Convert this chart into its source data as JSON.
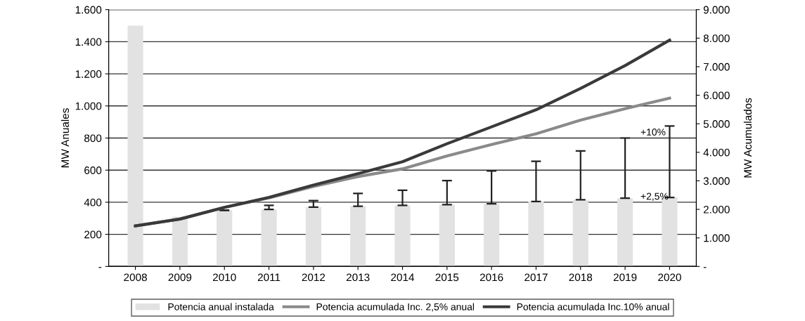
{
  "chart_data": {
    "type": "bar",
    "categories": [
      "2008",
      "2009",
      "2010",
      "2011",
      "2012",
      "2013",
      "2014",
      "2015",
      "2016",
      "2017",
      "2018",
      "2019",
      "2020"
    ],
    "ylabel": "MW Anuales",
    "y2label": "MW Acumulados",
    "ylim": [
      0,
      1600
    ],
    "yticks": [
      {
        "value": 0,
        "label": "-"
      },
      200,
      400,
      600,
      800,
      {
        "value": 1000,
        "label": "1.000"
      },
      {
        "value": 1200,
        "label": "1.200"
      },
      {
        "value": 1400,
        "label": "1.400"
      },
      {
        "value": 1600,
        "label": "1.600"
      }
    ],
    "y2lim": [
      0,
      9000
    ],
    "y2ticks": [
      {
        "value": 0,
        "label": "-"
      },
      {
        "value": 1000,
        "label": "1.000"
      },
      {
        "value": 2000,
        "label": "2.000"
      },
      {
        "value": 3000,
        "label": "3.000"
      },
      {
        "value": 4000,
        "label": "4.000"
      },
      {
        "value": 5000,
        "label": "5.000"
      },
      {
        "value": 6000,
        "label": "6.000"
      },
      {
        "value": 7000,
        "label": "7.000"
      },
      {
        "value": 8000,
        "label": "8.000"
      },
      {
        "value": 9000,
        "label": "9.000"
      }
    ],
    "grid": "y",
    "legend": "bottom",
    "series": [
      {
        "name": "Potencia anual instalada",
        "color": "#e2e2e2",
        "values": [
          1500,
          310,
          350,
          355,
          370,
          375,
          380,
          385,
          390,
          405,
          415,
          425,
          430
        ],
        "errors": [
          null,
          null,
          [
            350,
            350
          ],
          [
            355,
            380
          ],
          [
            370,
            410
          ],
          [
            375,
            455
          ],
          [
            380,
            475
          ],
          [
            385,
            535
          ],
          [
            390,
            595
          ],
          [
            405,
            655
          ],
          [
            415,
            720
          ],
          [
            425,
            800
          ],
          [
            430,
            875
          ]
        ]
      },
      {
        "name": "Potencia acumulada Inc. 2,5% anual",
        "type": "line",
        "axis": "y2",
        "color": "#8a8a8a",
        "values": [
          1420,
          1660,
          2070,
          2400,
          2800,
          3150,
          3420,
          3870,
          4270,
          4650,
          5130,
          5530,
          5900
        ]
      },
      {
        "name": "Potencia acumulada Inc.10% anual",
        "type": "line",
        "axis": "y2",
        "color": "#3a3a3a",
        "values": [
          1420,
          1660,
          2070,
          2420,
          2850,
          3250,
          3670,
          4300,
          4890,
          5490,
          6240,
          7040,
          7930
        ]
      }
    ],
    "annotations": [
      "+10%",
      "+2,5%"
    ]
  }
}
